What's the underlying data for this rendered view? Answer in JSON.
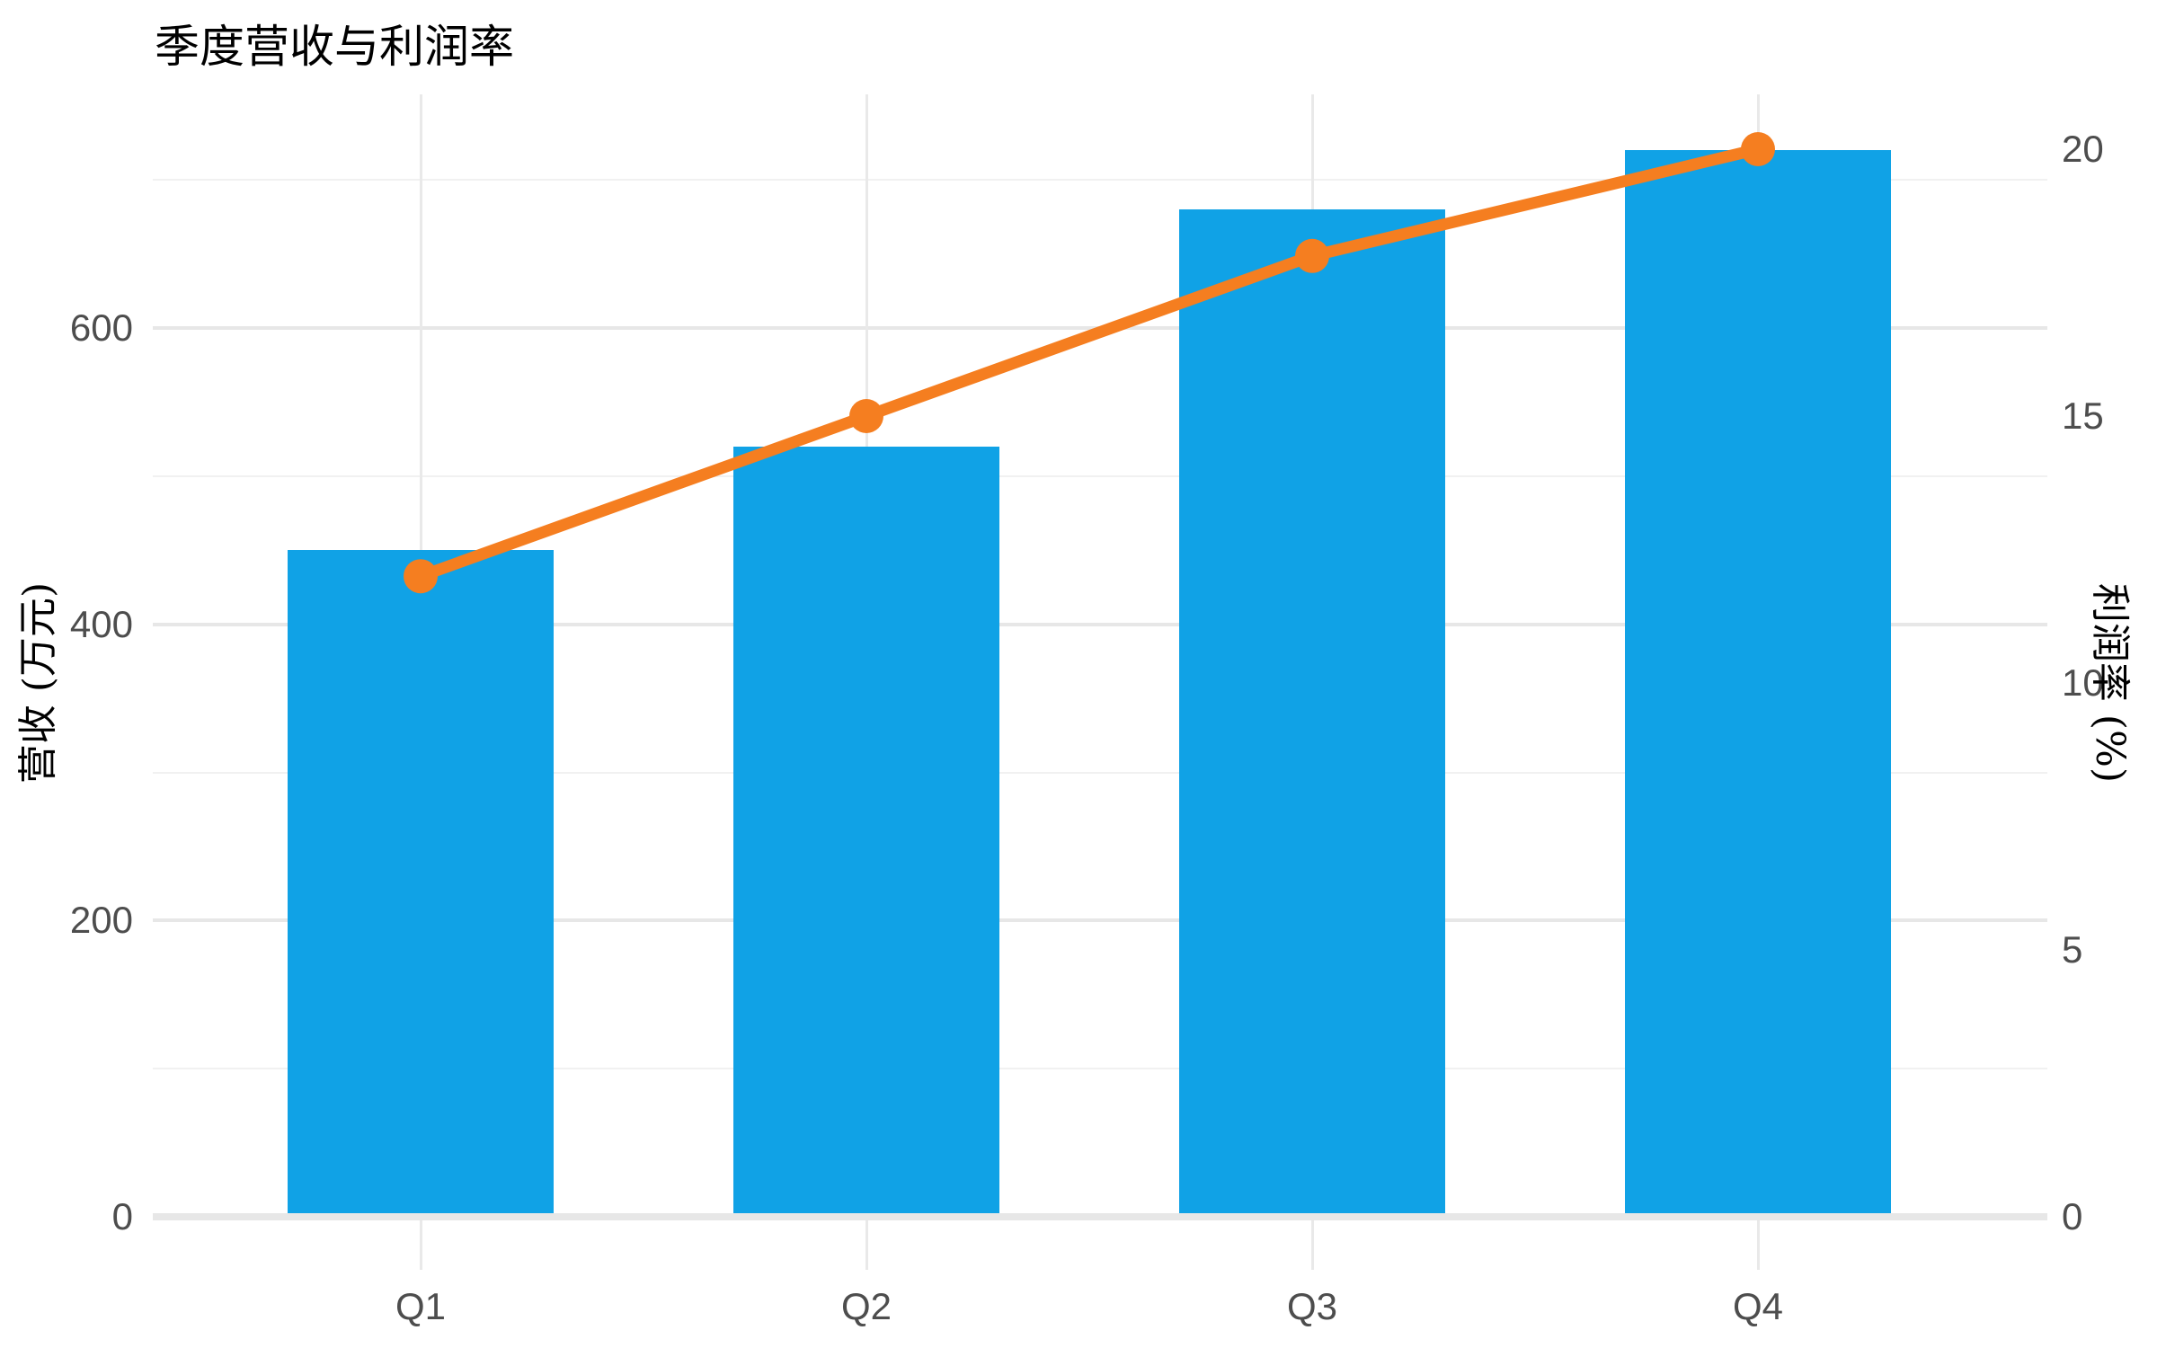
{
  "title": "季度营收与利润率",
  "chart_data": {
    "type": "combo-bar-line-dual-axis",
    "title": "季度营收与利润率",
    "categories": [
      "Q1",
      "Q2",
      "Q3",
      "Q4"
    ],
    "series": [
      {
        "name": "营收",
        "type": "bar",
        "axis": "left",
        "values": [
          450,
          520,
          680,
          720
        ],
        "color": "#10A2E6"
      },
      {
        "name": "利润率",
        "type": "line",
        "axis": "right",
        "values": [
          12,
          15,
          18,
          20
        ],
        "color": "#F57E20"
      }
    ],
    "left_axis": {
      "title": "营收 (万元)",
      "ticks": [
        0,
        200,
        400,
        600
      ],
      "minor_ticks": [
        100,
        300,
        500,
        700
      ],
      "range": [
        0,
        758
      ]
    },
    "right_axis": {
      "title": "利润率 (%)",
      "ticks": [
        0,
        5,
        10,
        15,
        20
      ],
      "range": [
        0,
        21
      ]
    },
    "x_axis": {
      "tick_labels": [
        "Q1",
        "Q2",
        "Q3",
        "Q4"
      ]
    },
    "legend_position": "none",
    "grid": "on",
    "colors": {
      "bar": "#10A2E6",
      "line": "#F57E20",
      "grid_major": "#e7e7e7",
      "grid_minor": "#f1f1f1",
      "baseline": "#e7e7e7",
      "tick_text": "#4d4d4d",
      "title_text": "#000000"
    }
  }
}
